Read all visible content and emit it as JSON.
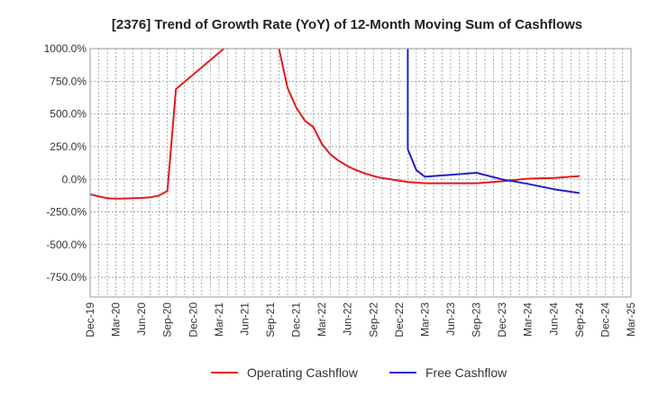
{
  "chart_data": {
    "type": "line",
    "title": "[2376]  Trend of Growth Rate (YoY) of 12-Month Moving Sum of Cashflows",
    "xlabel": "",
    "ylabel": "",
    "ylim": [
      -900,
      1000
    ],
    "yticks": [
      1000,
      750,
      500,
      250,
      0,
      -250,
      -500,
      -750
    ],
    "ytick_labels": [
      "1000.0%",
      "750.0%",
      "500.0%",
      "250.0%",
      "0.0%",
      "-250.0%",
      "-500.0%",
      "-750.0%"
    ],
    "xlim": [
      "2019-12",
      "2025-03"
    ],
    "xtick_labels": [
      "Dec-19",
      "Mar-20",
      "Jun-20",
      "Sep-20",
      "Dec-20",
      "Mar-21",
      "Jun-21",
      "Sep-21",
      "Dec-21",
      "Mar-22",
      "Jun-22",
      "Sep-22",
      "Dec-22",
      "Mar-23",
      "Jun-23",
      "Sep-23",
      "Dec-23",
      "Mar-24",
      "Jun-24",
      "Sep-24",
      "Dec-24",
      "Mar-25"
    ],
    "grid": true,
    "legend": "bottom",
    "series": [
      {
        "name": "Operating Cashflow",
        "color": "#e31a1c",
        "x": [
          "2019-12",
          "2020-01",
          "2020-02",
          "2020-03",
          "2020-04",
          "2020-05",
          "2020-06",
          "2020-07",
          "2020-08",
          "2020-09",
          "2020-10",
          "2021-09",
          "2021-10",
          "2021-11",
          "2021-12",
          "2022-01",
          "2022-02",
          "2022-03",
          "2022-04",
          "2022-05",
          "2022-06",
          "2022-07",
          "2022-08",
          "2022-09",
          "2022-10",
          "2022-11",
          "2022-12",
          "2023-01",
          "2023-02",
          "2023-03",
          "2023-06",
          "2023-09",
          "2023-12",
          "2024-03",
          "2024-06",
          "2024-09"
        ],
        "values": [
          -115,
          -130,
          -145,
          -148,
          -147,
          -145,
          -143,
          -138,
          -125,
          -90,
          690,
          1300,
          1000,
          700,
          550,
          450,
          400,
          270,
          190,
          140,
          100,
          70,
          45,
          25,
          10,
          0,
          -10,
          -20,
          -25,
          -30,
          -30,
          -30,
          -15,
          5,
          10,
          25
        ]
      },
      {
        "name": "Free Cashflow",
        "color": "#1f1fd0",
        "x": [
          "2023-01",
          "2023-01",
          "2023-02",
          "2023-03",
          "2023-04",
          "2023-06",
          "2023-09",
          "2023-12",
          "2024-03",
          "2024-06",
          "2024-09"
        ],
        "values": [
          1300,
          230,
          70,
          20,
          25,
          35,
          50,
          0,
          -35,
          -75,
          -105
        ]
      }
    ]
  }
}
